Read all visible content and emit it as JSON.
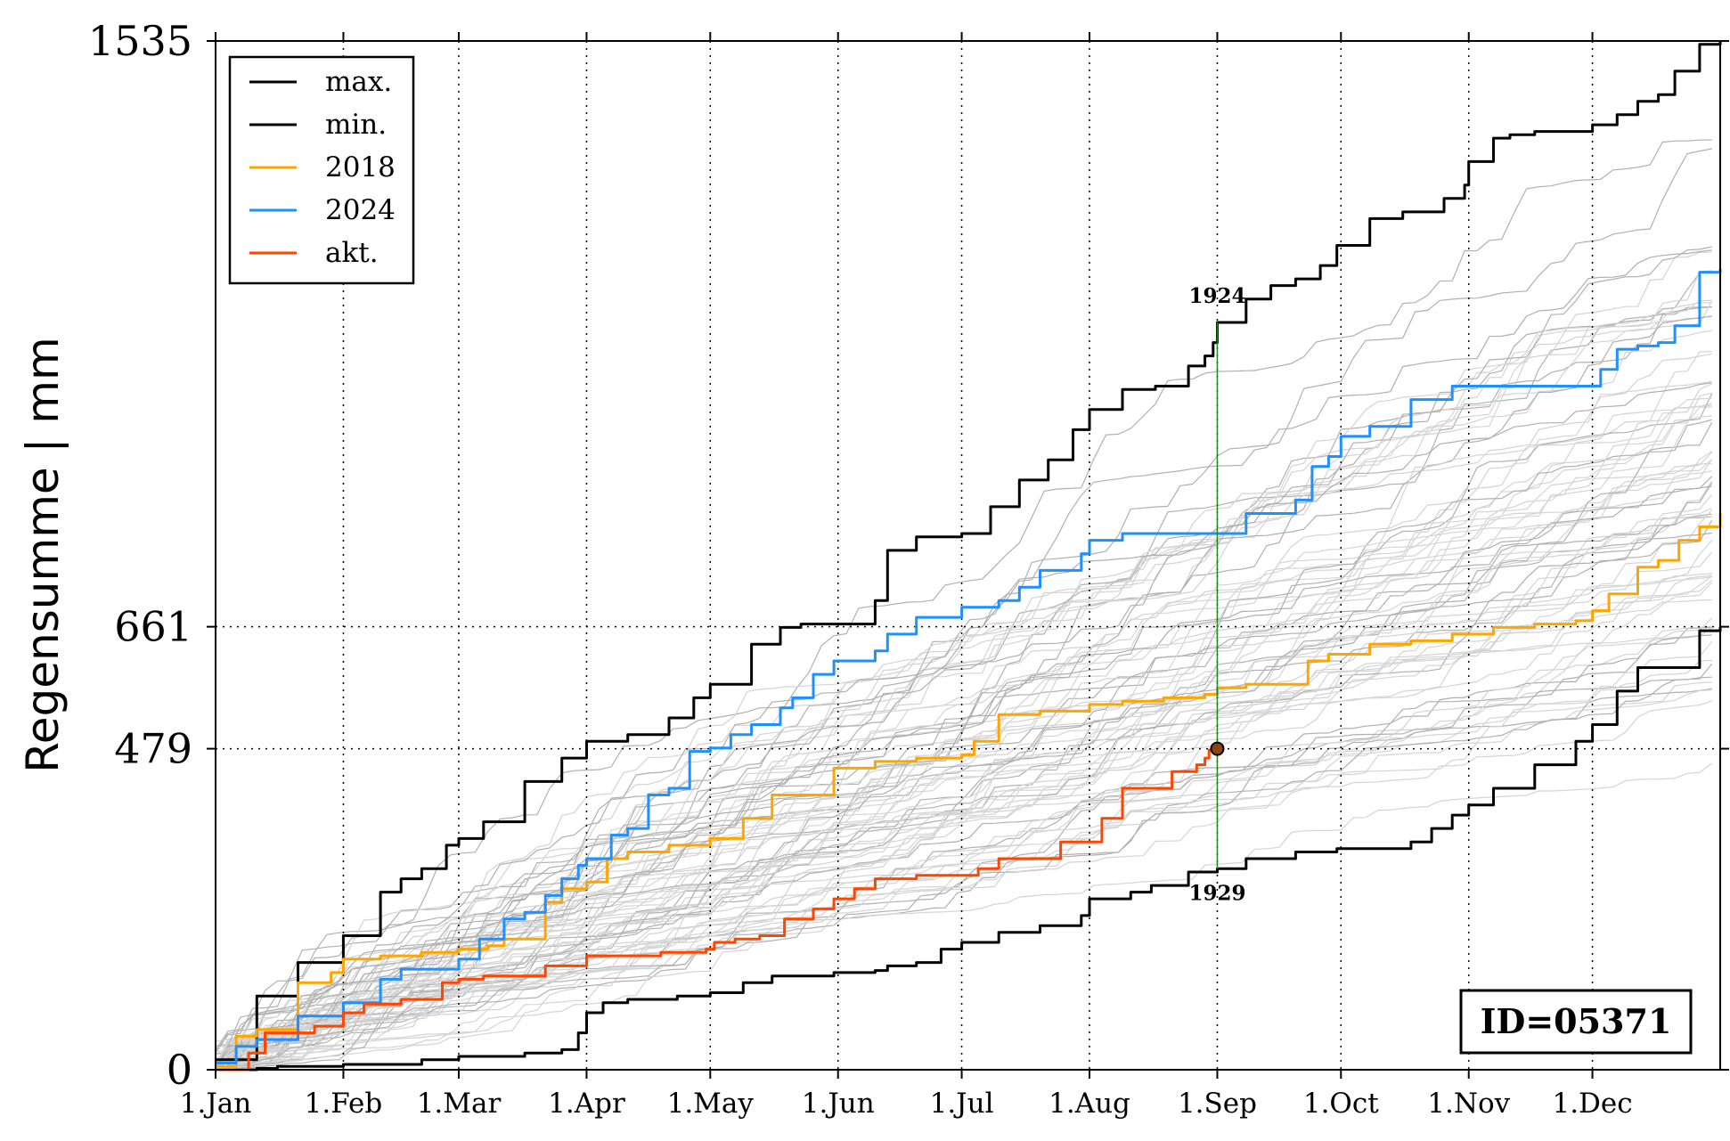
{
  "chart_data": {
    "type": "line",
    "title": "",
    "xlabel": "",
    "ylabel": "Regensumme | mm",
    "ylim": [
      0,
      1535
    ],
    "xlim_days": [
      0,
      365
    ],
    "x_ticks": [
      {
        "day": 0,
        "label": "1.Jan"
      },
      {
        "day": 31,
        "label": "1.Feb"
      },
      {
        "day": 59,
        "label": "1.Mar"
      },
      {
        "day": 90,
        "label": "1.Apr"
      },
      {
        "day": 120,
        "label": "1.May"
      },
      {
        "day": 151,
        "label": "1.Jun"
      },
      {
        "day": 181,
        "label": "1.Jul"
      },
      {
        "day": 212,
        "label": "1.Aug"
      },
      {
        "day": 243,
        "label": "1.Sep"
      },
      {
        "day": 273,
        "label": "1.Oct"
      },
      {
        "day": 304,
        "label": "1.Nov"
      },
      {
        "day": 334,
        "label": "1.Dec"
      }
    ],
    "y_ticks": [
      {
        "value": 0,
        "label": "0"
      },
      {
        "value": 479,
        "label": "479"
      },
      {
        "value": 661,
        "label": "661"
      },
      {
        "value": 1535,
        "label": "1535"
      }
    ],
    "grid": "dotted vertical lines at month starts; dotted horizontal lines at 479 and 661",
    "legend_position": "top-left",
    "series": [
      {
        "name": "max.",
        "color": "#000000",
        "x": [
          0,
          10,
          20,
          31,
          40,
          45,
          50,
          56,
          59,
          65,
          75,
          84,
          90,
          100,
          110,
          116,
          120,
          130,
          137,
          142,
          150,
          160,
          163,
          170,
          176,
          181,
          188,
          195,
          202,
          208,
          212,
          220,
          223,
          228,
          236,
          240,
          242,
          243,
          250,
          256,
          262,
          268,
          272,
          280,
          288,
          298,
          303,
          304,
          310,
          314,
          320,
          330,
          334,
          340,
          345,
          350,
          354,
          360,
          365
        ],
        "values": [
          15,
          110,
          160,
          200,
          265,
          285,
          300,
          335,
          345,
          370,
          430,
          465,
          490,
          500,
          525,
          555,
          575,
          635,
          660,
          665,
          665,
          700,
          775,
          795,
          795,
          800,
          840,
          880,
          910,
          955,
          985,
          1015,
          1015,
          1020,
          1050,
          1065,
          1085,
          1115,
          1150,
          1170,
          1180,
          1200,
          1230,
          1270,
          1280,
          1300,
          1320,
          1355,
          1390,
          1395,
          1400,
          1400,
          1410,
          1425,
          1445,
          1455,
          1490,
          1530,
          1535
        ]
      },
      {
        "name": "min.",
        "color": "#000000",
        "x": [
          0,
          10,
          15,
          31,
          50,
          59,
          75,
          84,
          88,
          90,
          94,
          100,
          112,
          120,
          128,
          135,
          150,
          160,
          163,
          170,
          176,
          181,
          190,
          200,
          210,
          212,
          222,
          227,
          236,
          243,
          250,
          262,
          272,
          290,
          295,
          300,
          304,
          310,
          320,
          330,
          334,
          340,
          345,
          360,
          365
        ],
        "values": [
          0,
          2,
          5,
          8,
          15,
          20,
          25,
          30,
          55,
          85,
          100,
          105,
          110,
          115,
          130,
          140,
          145,
          148,
          155,
          160,
          180,
          190,
          205,
          215,
          230,
          255,
          265,
          275,
          295,
          300,
          315,
          325,
          330,
          340,
          360,
          380,
          395,
          420,
          455,
          490,
          515,
          565,
          600,
          655,
          661
        ]
      },
      {
        "name": "2018",
        "color": "#FFA500",
        "x": [
          0,
          5,
          10,
          20,
          28,
          31,
          40,
          50,
          59,
          66,
          70,
          80,
          84,
          90,
          95,
          100,
          110,
          120,
          125,
          128,
          135,
          150,
          160,
          170,
          181,
          184,
          190,
          200,
          212,
          220,
          230,
          240,
          243,
          250,
          262,
          265,
          270,
          273,
          280,
          290,
          300,
          304,
          310,
          320,
          330,
          334,
          338,
          345,
          350,
          355,
          360,
          365
        ],
        "values": [
          5,
          50,
          60,
          130,
          145,
          165,
          170,
          175,
          180,
          185,
          195,
          250,
          270,
          280,
          315,
          325,
          335,
          345,
          345,
          375,
          410,
          450,
          460,
          465,
          470,
          490,
          530,
          535,
          545,
          550,
          555,
          560,
          570,
          575,
          575,
          610,
          620,
          620,
          635,
          640,
          650,
          650,
          660,
          665,
          670,
          685,
          710,
          750,
          760,
          790,
          810,
          830
        ]
      },
      {
        "name": "2024",
        "color": "#1E90FF",
        "x": [
          0,
          5,
          10,
          20,
          31,
          40,
          45,
          59,
          64,
          70,
          75,
          80,
          84,
          88,
          90,
          96,
          100,
          105,
          107,
          110,
          115,
          120,
          125,
          130,
          137,
          140,
          145,
          150,
          160,
          163,
          170,
          177,
          181,
          190,
          195,
          200,
          210,
          212,
          220,
          230,
          237,
          243,
          250,
          262,
          266,
          270,
          273,
          280,
          290,
          300,
          304,
          310,
          320,
          330,
          336,
          340,
          345,
          350,
          354,
          360,
          365
        ],
        "values": [
          10,
          35,
          45,
          80,
          100,
          135,
          150,
          165,
          195,
          225,
          235,
          260,
          285,
          305,
          315,
          350,
          360,
          410,
          410,
          420,
          475,
          480,
          500,
          515,
          540,
          555,
          590,
          610,
          625,
          650,
          675,
          675,
          690,
          700,
          720,
          745,
          770,
          790,
          800,
          800,
          800,
          800,
          830,
          850,
          900,
          915,
          945,
          960,
          1000,
          1020,
          1020,
          1020,
          1020,
          1020,
          1045,
          1075,
          1080,
          1085,
          1110,
          1190,
          1195
        ]
      },
      {
        "name": "akt.",
        "color": "#FF4500",
        "x": [
          0,
          8,
          12,
          24,
          31,
          36,
          45,
          55,
          59,
          65,
          80,
          90,
          108,
          119,
          121,
          126,
          132,
          138,
          145,
          150,
          155,
          160,
          170,
          181,
          185,
          190,
          205,
          215,
          220,
          232,
          238,
          240,
          241,
          243
        ],
        "values": [
          0,
          25,
          55,
          65,
          85,
          98,
          105,
          130,
          135,
          140,
          155,
          170,
          175,
          180,
          190,
          195,
          200,
          225,
          240,
          255,
          270,
          285,
          290,
          290,
          300,
          315,
          340,
          375,
          420,
          445,
          455,
          465,
          477,
          479
        ]
      }
    ],
    "background_series_note": "numerous thin light-grey lines for individual historical years (unlabeled)",
    "annotations": [
      {
        "label": "1924",
        "x": 243,
        "y": 1115
      },
      {
        "label": "1929",
        "x": 243,
        "y": 300
      }
    ],
    "marker": {
      "x": 243,
      "y": 479,
      "color": "#8B4513"
    },
    "current_day_line": {
      "x": 243,
      "y_from": 300,
      "y_to": 1115,
      "color": "#1a8c1a"
    },
    "id_box": "ID=05371"
  }
}
